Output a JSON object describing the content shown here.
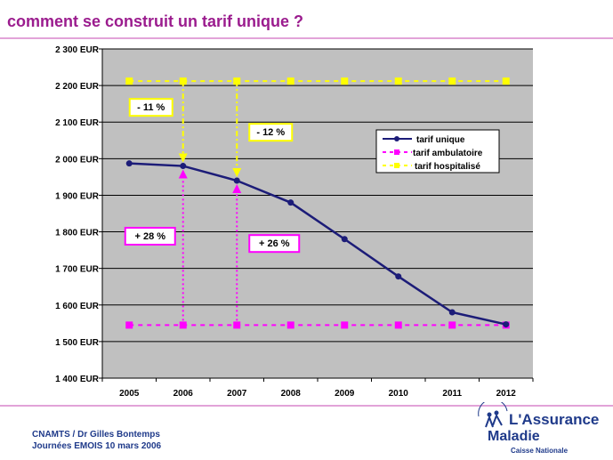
{
  "slide": {
    "title": "comment se construit un tarif unique ?"
  },
  "chart_data": {
    "type": "line",
    "categories": [
      "2005",
      "2006",
      "2007",
      "2008",
      "2009",
      "2010",
      "2011",
      "2012"
    ],
    "ylim": [
      1400,
      2300
    ],
    "y_ticks": [
      1400,
      1500,
      1600,
      1700,
      1800,
      1900,
      2000,
      2100,
      2200,
      2300
    ],
    "y_tick_labels": [
      "1 400 EUR",
      "1 500 EUR",
      "1 600 EUR",
      "1 700 EUR",
      "1 800 EUR",
      "1 900 EUR",
      "2 000 EUR",
      "2 100 EUR",
      "2 200 EUR",
      "2 300 EUR"
    ],
    "grid": true,
    "legend_position": "top-right",
    "series": [
      {
        "name": "tarif unique",
        "color": "#1c1c78",
        "style": "solid-line-dot",
        "values": [
          1987,
          1980,
          1940,
          1880,
          1780,
          1678,
          1580,
          1547
        ]
      },
      {
        "name": "tarif ambulatoire",
        "color": "#ff00ff",
        "style": "dashed-square",
        "values": [
          1545,
          1545,
          1545,
          1545,
          1545,
          1545,
          1545,
          1545
        ]
      },
      {
        "name": "tarif hospitalisé",
        "color": "#ffff00",
        "style": "dashed-square",
        "values": [
          2212,
          2212,
          2212,
          2212,
          2212,
          2212,
          2212,
          2212
        ]
      }
    ],
    "annotations": [
      {
        "text": "- 11 %",
        "color": "#ffff00",
        "arrow_category": "2006",
        "from": 2212,
        "to": 1980
      },
      {
        "text": "- 12 %",
        "color": "#ffff00",
        "arrow_category": "2007",
        "from": 2212,
        "to": 1940
      },
      {
        "text": "+ 28 %",
        "color": "#ff00ff",
        "arrow_category": "2006",
        "from": 1545,
        "to": 1980
      },
      {
        "text": "+ 26 %",
        "color": "#ff00ff",
        "arrow_category": "2007",
        "from": 1545,
        "to": 1940
      }
    ]
  },
  "footer": {
    "author": "CNAMTS / Dr Gilles Bontemps",
    "event": "Journées EMOIS 10 mars 2006"
  },
  "logo": {
    "line1": "L'Assurance",
    "line2": "Maladie",
    "line3": "Caisse Nationale"
  },
  "colors": {
    "title": "#9b1c8e",
    "plot_background": "#c0c0c0",
    "brand_blue": "#1f3a8a"
  }
}
